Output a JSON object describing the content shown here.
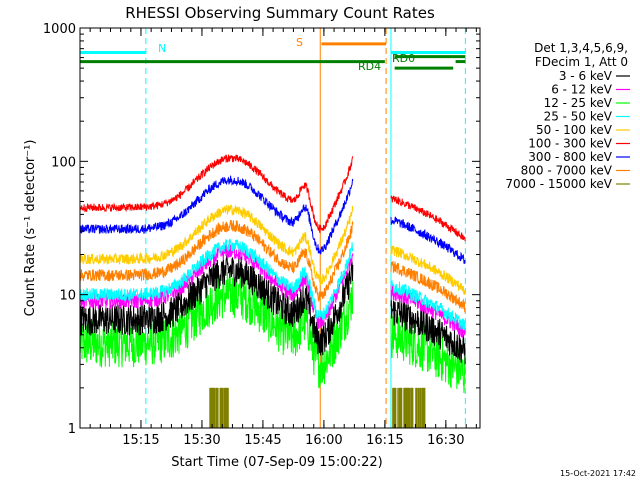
{
  "chart_data": {
    "type": "line",
    "title": "RHESSI Observing Summary Count Rates",
    "xlabel": "Start Time (07-Sep-09 15:00:22)",
    "ylabel": "Count Rate (s⁻¹ detector⁻¹)",
    "yscale": "log",
    "xlim": [
      15.0,
      16.64
    ],
    "ylim": [
      1,
      1000
    ],
    "x_ticks": [
      {
        "x": 15.25,
        "label": "15:15"
      },
      {
        "x": 15.5,
        "label": "15:30"
      },
      {
        "x": 15.75,
        "label": "15:45"
      },
      {
        "x": 16.0,
        "label": "16:00"
      },
      {
        "x": 16.25,
        "label": "16:15"
      },
      {
        "x": 16.5,
        "label": "16:30"
      }
    ],
    "y_ticks": [
      {
        "y": 1,
        "label": "1"
      },
      {
        "y": 10,
        "label": "10"
      },
      {
        "y": 100,
        "label": "100"
      },
      {
        "y": 1000,
        "label": "1000"
      }
    ],
    "grid": false,
    "legend": {
      "placement": "right",
      "header": [
        "Det 1,3,4,5,6,9,",
        "FDecim 1, Att 0"
      ]
    },
    "series": [
      {
        "name": "3 - 6 keV",
        "color": "#000000",
        "base": 6.5,
        "noise": 0.12
      },
      {
        "name": "6 - 12 keV",
        "color": "#ff00ff",
        "base": 9.0,
        "noise": 0.06
      },
      {
        "name": "12 - 25 keV",
        "color": "#00ff00",
        "base": 4.3,
        "noise": 0.18
      },
      {
        "name": "25 - 50 keV",
        "color": "#00ffff",
        "base": 10.0,
        "noise": 0.05
      },
      {
        "name": "50 - 100 keV",
        "color": "#ffcc00",
        "base": 18.5,
        "noise": 0.04
      },
      {
        "name": "100 - 300 keV",
        "color": "#ff0000",
        "base": 45.0,
        "noise": 0.03
      },
      {
        "name": "300 - 800 keV",
        "color": "#0000ff",
        "base": 31.0,
        "noise": 0.035
      },
      {
        "name": "800 - 7000 keV",
        "color": "#ff8000",
        "base": 14.0,
        "noise": 0.045
      },
      {
        "name": "7000 - 15000 keV",
        "color": "#808000",
        "base": 1,
        "noise": 0
      }
    ],
    "segments": [
      [
        15.0,
        16.12
      ],
      [
        16.275,
        16.58
      ]
    ],
    "attenuator_bursts": [
      [
        15.53,
        15.61
      ],
      [
        16.28,
        16.41
      ]
    ],
    "flag_labels": [
      {
        "label": "N",
        "color": "#00ffff"
      },
      {
        "label": "S",
        "color": "#ff8000"
      },
      {
        "label": "RD0",
        "color": "#008000"
      },
      {
        "label": "RD4",
        "color": "#008000"
      }
    ],
    "flag_lines": [
      {
        "color": "#00ffff",
        "y": 655,
        "x1": 15.0,
        "x2": 15.27
      },
      {
        "color": "#00ffff",
        "y": 655,
        "x1": 16.275,
        "x2": 16.58
      },
      {
        "color": "#ff8000",
        "y": 760,
        "x1": 15.99,
        "x2": 16.255
      },
      {
        "color": "#008000",
        "y": 560,
        "x1": 15.0,
        "x2": 16.25
      },
      {
        "color": "#008000",
        "y": 610,
        "x1": 16.29,
        "x2": 16.58
      },
      {
        "color": "#008000",
        "y": 500,
        "x1": 16.29,
        "x2": 16.53
      },
      {
        "color": "#008000",
        "y": 560,
        "x1": 16.54,
        "x2": 16.58
      }
    ],
    "vertical_lines": [
      {
        "x": 15.0,
        "color": "#00ffff",
        "dashed": false
      },
      {
        "x": 15.27,
        "color": "#00ffff",
        "dashed": true
      },
      {
        "x": 15.985,
        "color": "#ff8000",
        "dashed": false
      },
      {
        "x": 16.255,
        "color": "#ff8000",
        "dashed": true
      },
      {
        "x": 16.275,
        "color": "#00ffff",
        "dashed": false
      },
      {
        "x": 16.58,
        "color": "#00ffff",
        "dashed": true
      }
    ]
  },
  "timestamp": "15-Oct-2021 17:42"
}
